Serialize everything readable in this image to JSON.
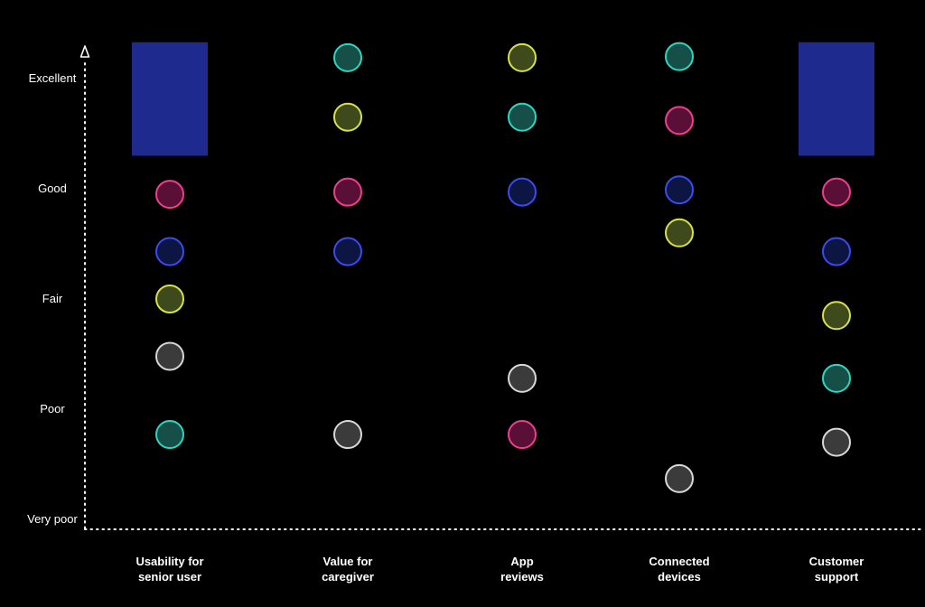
{
  "chart_data": {
    "type": "scatter",
    "title": "",
    "xlabel": "",
    "ylabel": "",
    "y_tick_labels": [
      "Very poor",
      "Poor",
      "Fair",
      "Good",
      "Excellent"
    ],
    "ylim": [
      0,
      4.3
    ],
    "grid": false,
    "legend": "none",
    "categories": [
      {
        "label_lines": [
          "Usability for",
          "senior user"
        ]
      },
      {
        "label_lines": [
          "Value for",
          "caregiver"
        ]
      },
      {
        "label_lines": [
          "App",
          "reviews"
        ]
      },
      {
        "label_lines": [
          "Connected",
          "devices"
        ]
      },
      {
        "label_lines": [
          "Customer",
          "support"
        ]
      }
    ],
    "highlight_bars": [
      {
        "category": 0,
        "y_from": 3.3,
        "y_to": 4.33,
        "color": "#1f2a8f"
      },
      {
        "category": 4,
        "y_from": 3.3,
        "y_to": 4.33,
        "color": "#1f2a8f"
      }
    ],
    "series": [
      {
        "fill": "#164f47",
        "stroke": "#2ed6c0",
        "values": [
          0.77,
          4.19,
          3.65,
          4.2,
          1.28
        ]
      },
      {
        "fill": "#3f4a1c",
        "stroke": "#d9e04a",
        "values": [
          2.0,
          3.65,
          4.19,
          2.6,
          1.85
        ]
      },
      {
        "fill": "#5a0f36",
        "stroke": "#ee3f8c",
        "values": [
          2.95,
          2.97,
          0.77,
          3.62,
          2.97
        ]
      },
      {
        "fill": "#0d1642",
        "stroke": "#3a4bf0",
        "values": [
          2.43,
          2.43,
          2.97,
          2.99,
          2.43
        ]
      },
      {
        "fill": "#3b3b3b",
        "stroke": "#d8d8d8",
        "values": [
          1.48,
          0.77,
          1.28,
          0.37,
          0.7
        ]
      }
    ],
    "colors": {
      "axis": "#ffffff",
      "background": "#000000"
    }
  }
}
